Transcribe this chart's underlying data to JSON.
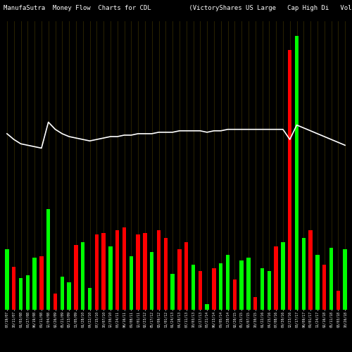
{
  "title": "ManufaSutra  Money Flow  Charts for CDL          (VictoryShares US Large   Cap High Di   Volatilit  Wtd ETF) ManufaS",
  "bg_color": "#000000",
  "bar_colors": [
    "#00ff00",
    "#ff0000",
    "#00ff00",
    "#00ff00",
    "#00ff00",
    "#ff0000",
    "#00ff00",
    "#ff0000",
    "#00ff00",
    "#00ff00",
    "#ff0000",
    "#00ff00",
    "#00ff00",
    "#ff0000",
    "#ff0000",
    "#00ff00",
    "#ff0000",
    "#ff0000",
    "#00ff00",
    "#ff0000",
    "#ff0000",
    "#00ff00",
    "#ff0000",
    "#ff0000",
    "#00ff00",
    "#ff0000",
    "#ff0000",
    "#00ff00",
    "#ff0000",
    "#00ff00",
    "#ff0000",
    "#00ff00",
    "#00ff00",
    "#ff0000",
    "#00ff00",
    "#00ff00",
    "#ff0000",
    "#00ff00",
    "#00ff00",
    "#ff0000",
    "#00ff00",
    "#ff0000",
    "#ff0000",
    "#00ff00",
    "#ff0000",
    "#00ff00",
    "#ff0000",
    "#00ff00",
    "#ff0000",
    "#00ff00"
  ],
  "bar_heights": [
    0.42,
    0.3,
    0.22,
    0.24,
    0.36,
    0.37,
    0.7,
    0.11,
    0.23,
    0.19,
    0.45,
    0.47,
    0.15,
    0.52,
    0.53,
    0.44,
    0.55,
    0.57,
    0.37,
    0.52,
    0.53,
    0.4,
    0.55,
    0.5,
    0.25,
    0.42,
    0.47,
    0.31,
    0.27,
    0.04,
    0.29,
    0.32,
    0.38,
    0.21,
    0.34,
    0.36,
    0.09,
    0.29,
    0.27,
    0.44,
    0.47,
    1.8,
    1.9,
    0.5,
    0.55,
    0.38,
    0.31,
    0.43,
    0.13,
    0.42
  ],
  "bar_colors_override": [
    null,
    null,
    null,
    null,
    null,
    null,
    null,
    null,
    null,
    null,
    null,
    null,
    null,
    null,
    null,
    null,
    null,
    null,
    null,
    null,
    null,
    null,
    null,
    null,
    null,
    null,
    null,
    null,
    null,
    null,
    null,
    null,
    null,
    null,
    null,
    null,
    null,
    null,
    null,
    null,
    null,
    "#ff0000",
    "#00ff00",
    null,
    null,
    null,
    null,
    null,
    null,
    null
  ],
  "line_values": [
    1.22,
    1.18,
    1.15,
    1.14,
    1.13,
    1.12,
    1.3,
    1.25,
    1.22,
    1.2,
    1.19,
    1.18,
    1.17,
    1.18,
    1.19,
    1.2,
    1.2,
    1.21,
    1.21,
    1.22,
    1.22,
    1.22,
    1.23,
    1.23,
    1.23,
    1.24,
    1.24,
    1.24,
    1.24,
    1.23,
    1.24,
    1.24,
    1.25,
    1.25,
    1.25,
    1.25,
    1.25,
    1.25,
    1.25,
    1.25,
    1.25,
    1.18,
    1.28,
    1.26,
    1.24,
    1.22,
    1.2,
    1.18,
    1.16,
    1.14
  ],
  "ylim": [
    0,
    2.0
  ],
  "grid_color": "#3a3000",
  "line_color": "#ffffff",
  "title_color": "#ffffff",
  "title_fontsize": 6.5,
  "xlabel_fontsize": 3.5,
  "xlabels": [
    "07/19/07",
    "10/11/07",
    "01/03/08",
    "03/27/08",
    "06/19/08",
    "09/11/08",
    "12/04/08",
    "02/26/09",
    "05/21/09",
    "08/13/09",
    "11/05/09",
    "01/28/10",
    "04/22/10",
    "07/15/10",
    "10/07/10",
    "12/30/10",
    "03/24/11",
    "06/16/11",
    "09/08/11",
    "12/01/11",
    "02/23/12",
    "05/17/12",
    "08/09/12",
    "11/01/12",
    "01/24/13",
    "04/18/13",
    "07/11/13",
    "10/03/13",
    "12/27/13",
    "03/21/14",
    "06/13/14",
    "09/05/14",
    "11/28/14",
    "02/20/15",
    "05/15/15",
    "08/07/15",
    "10/30/15",
    "01/22/16",
    "04/15/16",
    "07/08/16",
    "09/30/16",
    "12/23/16",
    "03/17/17",
    "06/09/17",
    "09/01/17",
    "11/24/17",
    "02/16/18",
    "05/11/18",
    "08/03/18",
    "10/26/18"
  ]
}
